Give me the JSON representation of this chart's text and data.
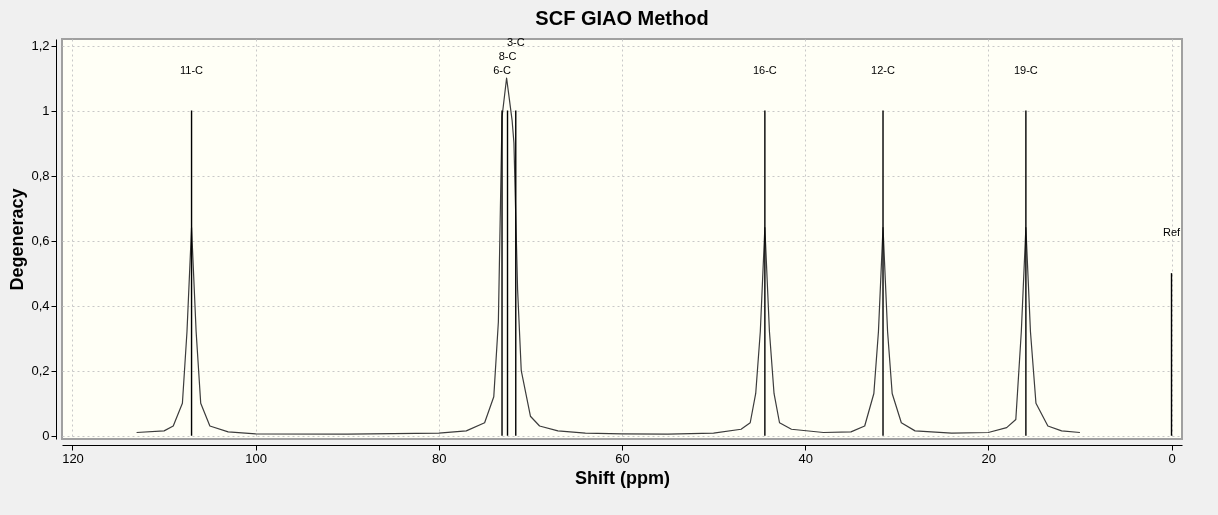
{
  "chart_data": {
    "type": "line",
    "title": "SCF GIAO Method",
    "xlabel": "Shift (ppm)",
    "ylabel": "Degeneracy",
    "xlim": [
      120.6,
      -0.6
    ],
    "xticks": [
      120,
      100,
      80,
      60,
      40,
      20,
      0
    ],
    "ylim": [
      -0.01,
      1.22
    ],
    "yticks": [
      0,
      {
        "value": 0.2,
        "label": "0,2"
      },
      {
        "value": 0.4,
        "label": "0,4"
      },
      {
        "value": 0.6,
        "label": "0,6"
      },
      {
        "value": 0.8,
        "label": "0,8"
      },
      1,
      {
        "value": 1.2,
        "label": "1,2"
      }
    ],
    "grid": true,
    "series": [
      {
        "color": "#3c3c3c",
        "x": [
          113,
          110,
          109,
          108,
          107.5,
          107,
          106.5,
          106,
          105,
          103,
          100,
          90,
          80,
          77,
          75,
          74,
          73.5,
          73.1,
          72.6,
          72.0,
          71.8,
          71.4,
          71,
          70,
          69,
          67,
          64,
          60,
          55,
          50,
          47,
          46,
          45.4,
          44.9,
          44.4,
          43.9,
          43.4,
          42.8,
          41.5,
          38,
          35,
          33.5,
          32.5,
          32,
          31.5,
          31,
          30.5,
          29.5,
          28,
          24,
          20,
          18,
          17,
          16.4,
          15.9,
          15.4,
          14.8,
          13.5,
          12,
          10
        ],
        "values": [
          0.01,
          0.015,
          0.03,
          0.1,
          0.32,
          0.64,
          0.32,
          0.1,
          0.03,
          0.012,
          0.006,
          0.005,
          0.008,
          0.015,
          0.04,
          0.12,
          0.35,
          0.98,
          1.1,
          0.97,
          0.9,
          0.45,
          0.2,
          0.06,
          0.03,
          0.015,
          0.008,
          0.006,
          0.005,
          0.008,
          0.02,
          0.04,
          0.13,
          0.32,
          0.64,
          0.32,
          0.13,
          0.04,
          0.02,
          0.01,
          0.012,
          0.03,
          0.13,
          0.32,
          0.64,
          0.32,
          0.13,
          0.04,
          0.015,
          0.008,
          0.01,
          0.025,
          0.05,
          0.32,
          0.64,
          0.32,
          0.1,
          0.03,
          0.015,
          0.01
        ]
      },
      {
        "type": "bar",
        "color": "#000000",
        "x": [
          107,
          73.1,
          72.5,
          71.6,
          44.4,
          31.5,
          15.9,
          0
        ],
        "values": [
          1,
          1,
          1,
          1,
          1,
          1,
          1,
          0.5
        ]
      }
    ],
    "annotations": [
      "11-C",
      "6-C",
      "8-C",
      "3-C",
      "16-C",
      "12-C",
      "19-C",
      "Ref"
    ]
  }
}
